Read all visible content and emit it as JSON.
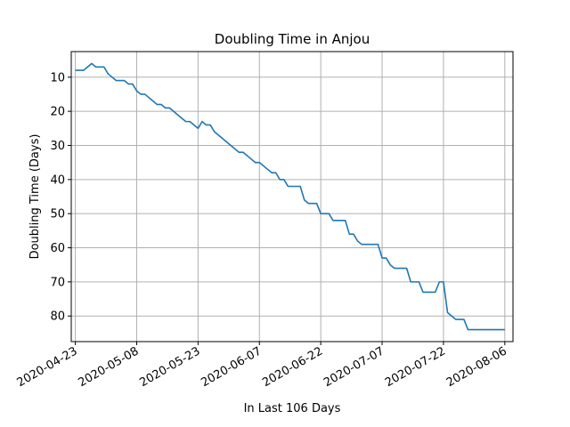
{
  "chart_data": {
    "type": "line",
    "title": "Doubling Time in  Anjou",
    "xlabel": "In Last 106 Days",
    "ylabel": "Doubling Time (Days)",
    "y_inverted": true,
    "ylim": [
      87.5,
      2.5
    ],
    "xlim": [
      "2020-04-22",
      "2020-08-08"
    ],
    "grid": true,
    "x_ticks": [
      "2020-04-23",
      "2020-05-08",
      "2020-05-23",
      "2020-06-07",
      "2020-06-22",
      "2020-07-07",
      "2020-07-22",
      "2020-08-06"
    ],
    "y_ticks": [
      10,
      20,
      30,
      40,
      50,
      60,
      70,
      80
    ],
    "line_color": "#1f77b4",
    "series": [
      {
        "points": [
          [
            "2020-04-23",
            8
          ],
          [
            "2020-04-25",
            8
          ],
          [
            "2020-04-26",
            7
          ],
          [
            "2020-04-27",
            6
          ],
          [
            "2020-04-28",
            7
          ],
          [
            "2020-04-30",
            7
          ],
          [
            "2020-05-01",
            9
          ],
          [
            "2020-05-03",
            11
          ],
          [
            "2020-05-05",
            11
          ],
          [
            "2020-05-06",
            12
          ],
          [
            "2020-05-07",
            12
          ],
          [
            "2020-05-08",
            14
          ],
          [
            "2020-05-09",
            15
          ],
          [
            "2020-05-10",
            15
          ],
          [
            "2020-05-12",
            17
          ],
          [
            "2020-05-13",
            18
          ],
          [
            "2020-05-14",
            18
          ],
          [
            "2020-05-15",
            19
          ],
          [
            "2020-05-16",
            19
          ],
          [
            "2020-05-18",
            21
          ],
          [
            "2020-05-20",
            23
          ],
          [
            "2020-05-21",
            23
          ],
          [
            "2020-05-23",
            25
          ],
          [
            "2020-05-24",
            23
          ],
          [
            "2020-05-25",
            24
          ],
          [
            "2020-05-26",
            24
          ],
          [
            "2020-05-27",
            26
          ],
          [
            "2020-05-29",
            28
          ],
          [
            "2020-05-31",
            30
          ],
          [
            "2020-06-02",
            32
          ],
          [
            "2020-06-03",
            32
          ],
          [
            "2020-06-05",
            34
          ],
          [
            "2020-06-06",
            35
          ],
          [
            "2020-06-07",
            35
          ],
          [
            "2020-06-09",
            37
          ],
          [
            "2020-06-10",
            38
          ],
          [
            "2020-06-11",
            38
          ],
          [
            "2020-06-12",
            40
          ],
          [
            "2020-06-13",
            40
          ],
          [
            "2020-06-14",
            42
          ],
          [
            "2020-06-17",
            42
          ],
          [
            "2020-06-18",
            46
          ],
          [
            "2020-06-19",
            47
          ],
          [
            "2020-06-21",
            47
          ],
          [
            "2020-06-22",
            50
          ],
          [
            "2020-06-24",
            50
          ],
          [
            "2020-06-25",
            52
          ],
          [
            "2020-06-28",
            52
          ],
          [
            "2020-06-29",
            56
          ],
          [
            "2020-06-30",
            56
          ],
          [
            "2020-07-01",
            58
          ],
          [
            "2020-07-02",
            59
          ],
          [
            "2020-07-06",
            59
          ],
          [
            "2020-07-07",
            63
          ],
          [
            "2020-07-08",
            63
          ],
          [
            "2020-07-09",
            65
          ],
          [
            "2020-07-10",
            66
          ],
          [
            "2020-07-13",
            66
          ],
          [
            "2020-07-14",
            70
          ],
          [
            "2020-07-16",
            70
          ],
          [
            "2020-07-17",
            73
          ],
          [
            "2020-07-20",
            73
          ],
          [
            "2020-07-21",
            70
          ],
          [
            "2020-07-22",
            70
          ],
          [
            "2020-07-23",
            79
          ],
          [
            "2020-07-25",
            81
          ],
          [
            "2020-07-27",
            81
          ],
          [
            "2020-07-28",
            84
          ],
          [
            "2020-08-06",
            84
          ]
        ]
      }
    ]
  }
}
